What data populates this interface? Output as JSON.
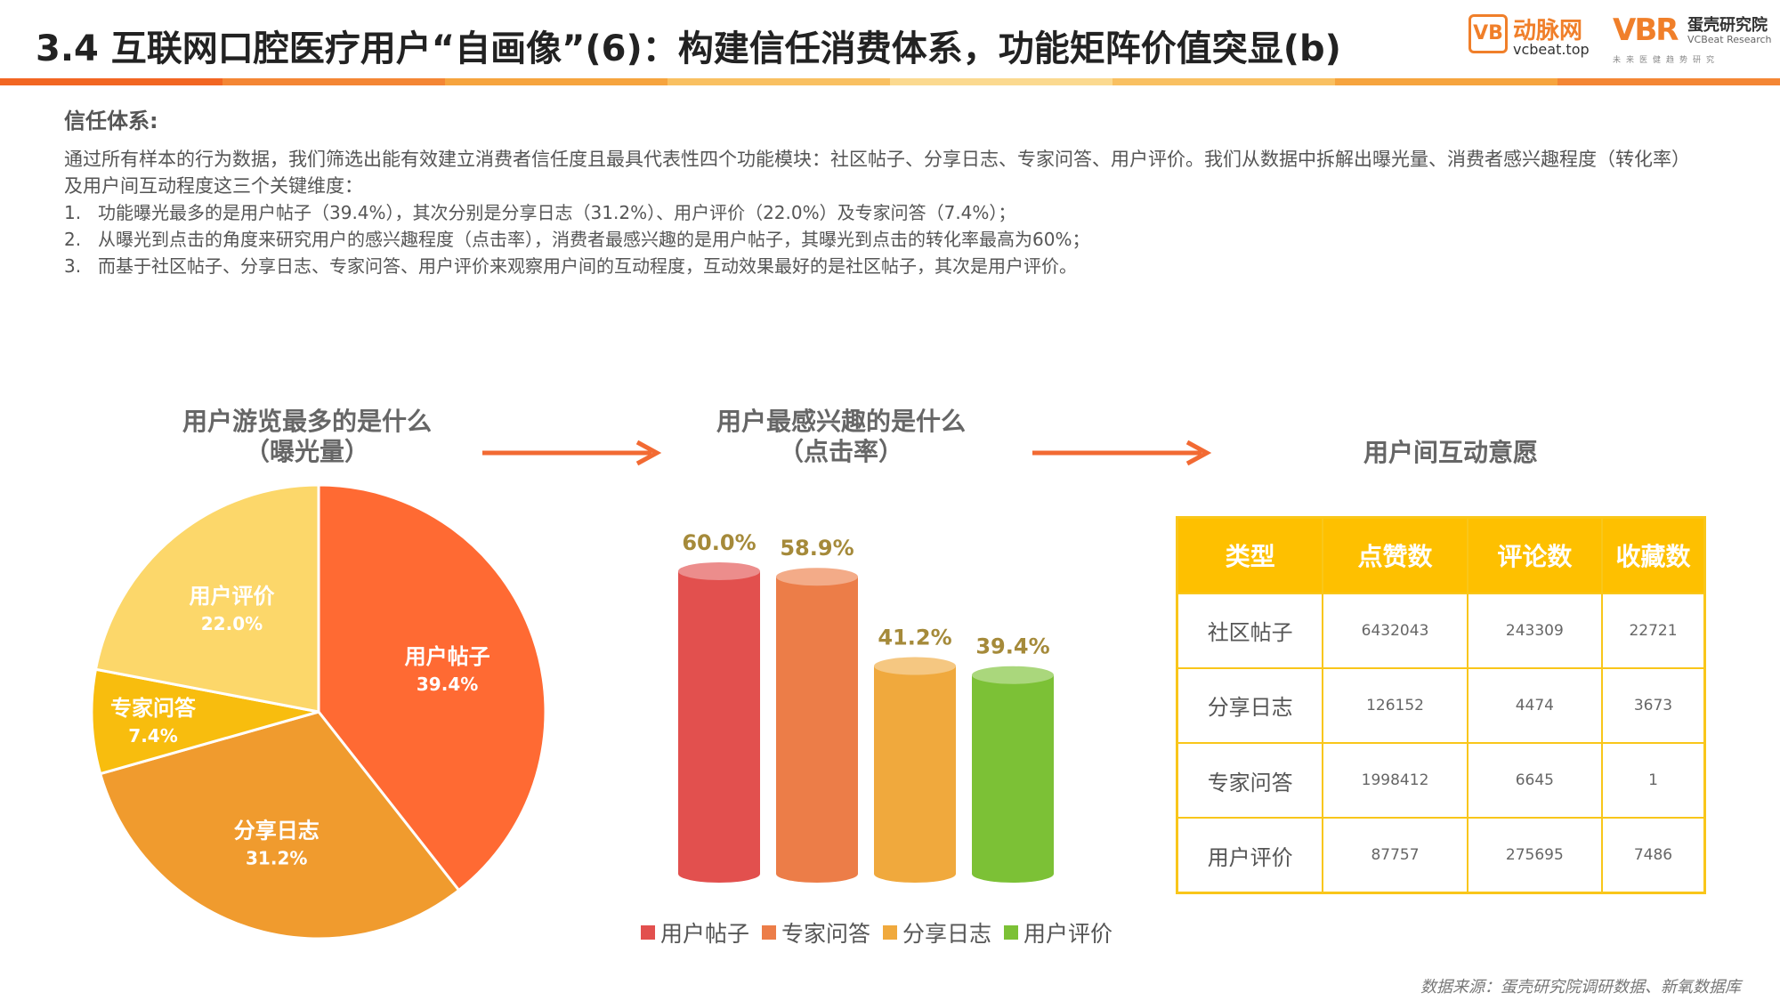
{
  "header": {
    "title": "3.4 互联网口腔医疗用户“自画像”(6)：构建信任消费体系，功能矩阵价值突显(b)",
    "bar_colors": [
      "#f26622",
      "#f48634",
      "#f6a43e",
      "#f9c061",
      "#fbd98f",
      "#f9c061",
      "#f6a43e",
      "#f48634"
    ],
    "logo_vcbeat": {
      "mark": "VB",
      "name": "动脉网",
      "url": "vcbeat.top"
    },
    "logo_vbr": {
      "mark": "VBR",
      "name_cn": "蛋壳研究院",
      "name_en": "VCBeat Research",
      "sub": "未来医健趋势研究"
    }
  },
  "trust": {
    "heading": "信任体系:",
    "intro": "通过所有样本的行为数据，我们筛选出能有效建立消费者信任度且最具代表性四个功能模块：社区帖子、分享日志、专家问答、用户评价。我们从数据中拆解出曝光量、消费者感兴趣程度（转化率）及用户间互动程度这三个关键维度：",
    "points": [
      {
        "num": "1.",
        "text": "功能曝光最多的是用户帖子（39.4%），其次分别是分享日志（31.2%）、用户评价（22.0%）及专家问答（7.4%）；"
      },
      {
        "num": "2.",
        "text": "从曝光到点击的角度来研究用户的感兴趣程度（点击率），消费者最感兴趣的是用户帖子，其曝光到点击的转化率最高为60%；"
      },
      {
        "num": "3.",
        "text": "而基于社区帖子、分享日志、专家问答、用户评价来观察用户间的互动程度，互动效果最好的是社区帖子，其次是用户评价。"
      }
    ]
  },
  "charts": {
    "pie_title_1": "用户游览最多的是什么",
    "pie_title_2": "（曝光量）",
    "bar_title_1": "用户最感兴趣的是什么",
    "bar_title_2": "（点击率）",
    "table_title": "用户间互动意愿",
    "arrow_color": "#f26a33"
  },
  "chart_data": [
    {
      "type": "pie",
      "title": "用户游览最多的是什么（曝光量）",
      "slices": [
        {
          "label": "用户帖子",
          "value": 39.4,
          "value_label": "39.4%",
          "color": "#ff6a33"
        },
        {
          "label": "分享日志",
          "value": 31.2,
          "value_label": "31.2%",
          "color": "#f09b2e"
        },
        {
          "label": "专家问答",
          "value": 7.4,
          "value_label": "7.4%",
          "color": "#f8bd0e"
        },
        {
          "label": "用户评价",
          "value": 22.0,
          "value_label": "22.0%",
          "color": "#fcd76a"
        }
      ],
      "start": "12 o'clock, clockwise"
    },
    {
      "type": "bar",
      "title": "用户最感兴趣的是什么（点击率）",
      "categories": [
        "用户帖子",
        "专家问答",
        "分享日志",
        "用户评价"
      ],
      "values": [
        60.0,
        58.9,
        41.2,
        39.4
      ],
      "value_labels": [
        "60.0%",
        "58.9%",
        "41.2%",
        "39.4%"
      ],
      "colors": [
        "#e2504e",
        "#ec7d48",
        "#f0a93d",
        "#7cc136"
      ],
      "style": "3d cylinder",
      "legend_position": "bottom",
      "ylim": [
        0,
        60
      ]
    },
    {
      "type": "table",
      "title": "用户间互动意愿",
      "columns": [
        "类型",
        "点赞数",
        "评论数",
        "收藏数"
      ],
      "rows": [
        [
          "社区帖子",
          "6432043",
          "243309",
          "22721"
        ],
        [
          "分享日志",
          "126152",
          "4474",
          "3673"
        ],
        [
          "专家问答",
          "1998412",
          "6645",
          "1"
        ],
        [
          "用户评价",
          "87757",
          "275695",
          "7486"
        ]
      ],
      "header_color": "#fec000"
    }
  ],
  "footer": {
    "source": "数据来源：蛋壳研究院调研数据、新氧数据库"
  }
}
